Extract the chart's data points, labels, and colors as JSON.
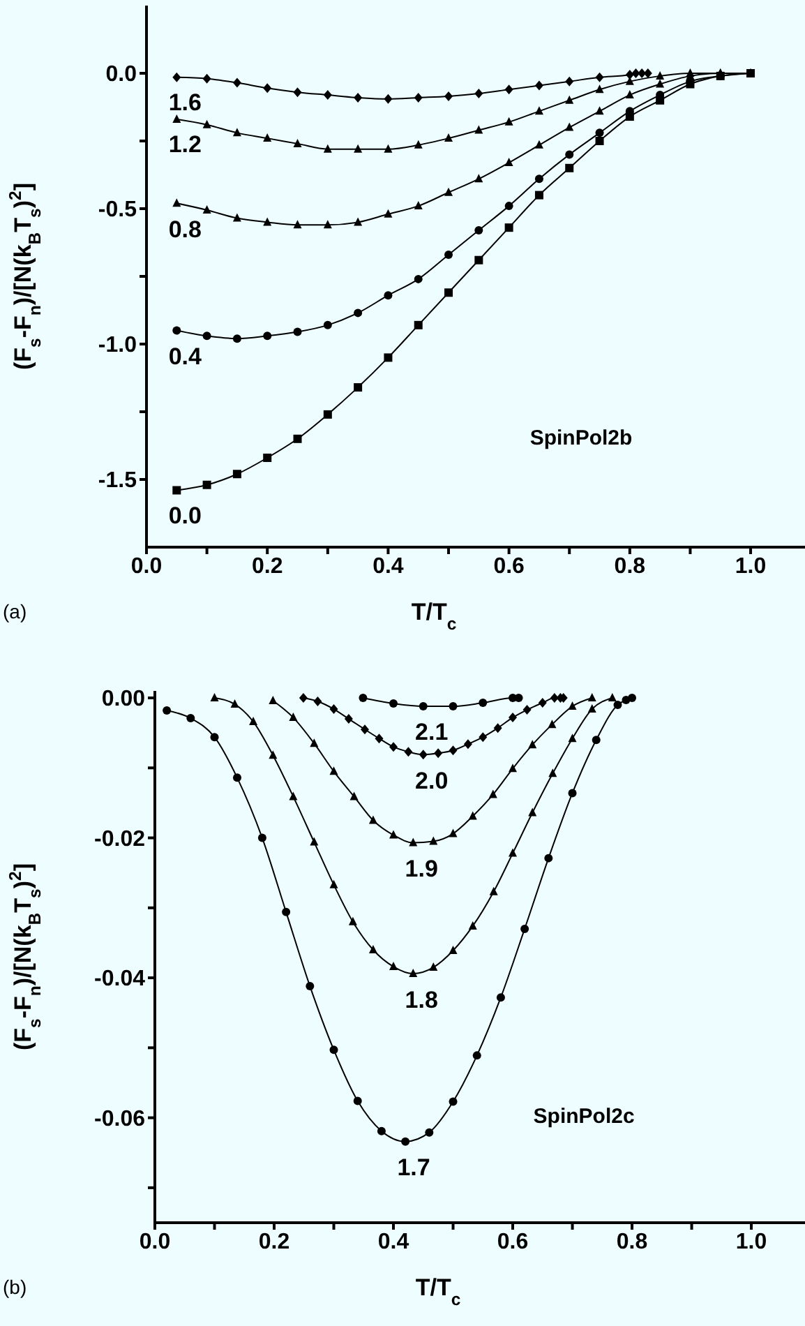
{
  "chart_data": [
    {
      "type": "line",
      "xlabel": "T/T$_{c}$",
      "ylabel": "(F$_{s}$-F$_{n}$)/[N(k$_{B}$T$_{s}$)$^{2}$]",
      "xlim": [
        0,
        1.09
      ],
      "ylim": [
        -1.75,
        0.25
      ],
      "xticks": [
        {
          "value": 0,
          "label": "0.0"
        },
        {
          "value": 0.1,
          "label": null
        },
        {
          "value": 0.2,
          "label": "0.2"
        },
        {
          "value": 0.3,
          "label": null
        },
        {
          "value": 0.4,
          "label": "0.4"
        },
        {
          "value": 0.5,
          "label": null
        },
        {
          "value": 0.6,
          "label": "0.6"
        },
        {
          "value": 0.7,
          "label": null
        },
        {
          "value": 0.8,
          "label": "0.8"
        },
        {
          "value": 0.9,
          "label": null
        },
        {
          "value": 1,
          "label": "1.0"
        }
      ],
      "yticks": [
        {
          "value": -1.5,
          "label": "-1.5"
        },
        {
          "value": -1.25,
          "label": null
        },
        {
          "value": -1,
          "label": "-1.0"
        },
        {
          "value": -0.75,
          "label": null
        },
        {
          "value": -0.5,
          "label": "-0.5"
        },
        {
          "value": -0.25,
          "label": null
        },
        {
          "value": 0,
          "label": "0.0"
        }
      ],
      "series": [
        {
          "name": "0.0",
          "color": "#000000",
          "marker": "square",
          "x": [
            0.05,
            0.1,
            0.15,
            0.2,
            0.25,
            0.3,
            0.35,
            0.4,
            0.45,
            0.5,
            0.55,
            0.6,
            0.65,
            0.7,
            0.75,
            0.8,
            0.85,
            0.9,
            0.95,
            1.0
          ],
          "values": [
            -1.54,
            -1.52,
            -1.48,
            -1.42,
            -1.35,
            -1.26,
            -1.16,
            -1.05,
            -0.93,
            -0.81,
            -0.69,
            -0.57,
            -0.45,
            -0.35,
            -0.25,
            -0.16,
            -0.1,
            -0.04,
            -0.01,
            0
          ]
        },
        {
          "name": "0.4",
          "color": "#000000",
          "marker": "circle",
          "x": [
            0.05,
            0.1,
            0.15,
            0.2,
            0.25,
            0.3,
            0.35,
            0.4,
            0.45,
            0.5,
            0.55,
            0.6,
            0.65,
            0.7,
            0.75,
            0.8,
            0.85,
            0.9,
            0.95,
            1.0
          ],
          "values": [
            -0.95,
            -0.97,
            -0.98,
            -0.97,
            -0.955,
            -0.93,
            -0.885,
            -0.82,
            -0.76,
            -0.67,
            -0.58,
            -0.49,
            -0.39,
            -0.3,
            -0.22,
            -0.14,
            -0.08,
            -0.03,
            -0.01,
            0
          ]
        },
        {
          "name": "0.8",
          "color": "#000000",
          "marker": "triangle",
          "x": [
            0.05,
            0.1,
            0.15,
            0.2,
            0.25,
            0.3,
            0.35,
            0.4,
            0.45,
            0.5,
            0.55,
            0.6,
            0.65,
            0.7,
            0.75,
            0.8,
            0.85,
            0.9,
            0.95,
            1.0
          ],
          "values": [
            -0.48,
            -0.505,
            -0.535,
            -0.55,
            -0.56,
            -0.56,
            -0.55,
            -0.52,
            -0.49,
            -0.44,
            -0.39,
            -0.33,
            -0.265,
            -0.2,
            -0.14,
            -0.08,
            -0.04,
            -0.01,
            0,
            0
          ]
        },
        {
          "name": "1.2",
          "color": "#000000",
          "marker": "triangle",
          "x": [
            0.05,
            0.1,
            0.15,
            0.2,
            0.25,
            0.3,
            0.35,
            0.4,
            0.45,
            0.5,
            0.55,
            0.6,
            0.65,
            0.7,
            0.75,
            0.8,
            0.85,
            0.9,
            0.95,
            1.0
          ],
          "values": [
            -0.17,
            -0.19,
            -0.22,
            -0.24,
            -0.26,
            -0.28,
            -0.28,
            -0.28,
            -0.265,
            -0.24,
            -0.21,
            -0.18,
            -0.14,
            -0.1,
            -0.06,
            -0.03,
            -0.01,
            0,
            0,
            0
          ]
        },
        {
          "name": "1.6",
          "color": "#000000",
          "marker": "diamond",
          "x": [
            0.05,
            0.1,
            0.15,
            0.2,
            0.25,
            0.3,
            0.35,
            0.4,
            0.45,
            0.5,
            0.55,
            0.6,
            0.65,
            0.7,
            0.75,
            0.8,
            0.81,
            0.82,
            0.83
          ],
          "values": [
            -0.015,
            -0.02,
            -0.035,
            -0.055,
            -0.07,
            -0.08,
            -0.09,
            -0.095,
            -0.09,
            -0.085,
            -0.075,
            -0.06,
            -0.045,
            -0.03,
            -0.015,
            -0.005,
            0,
            0,
            0
          ]
        }
      ],
      "annotations": [
        "SpinPol2b",
        "(a)"
      ]
    },
    {
      "type": "line",
      "xlabel": "T/T$_{c}$",
      "ylabel": "(F$_{s}$-F$_{n}$)/[N(k$_{B}$T$_{s}$)$^{2}$]",
      "xlim": [
        0,
        1.09
      ],
      "ylim": [
        -0.075,
        0.001
      ],
      "xticks": [
        {
          "value": 0,
          "label": "0.0"
        },
        {
          "value": 0.1,
          "label": null
        },
        {
          "value": 0.2,
          "label": "0.2"
        },
        {
          "value": 0.3,
          "label": null
        },
        {
          "value": 0.4,
          "label": "0.4"
        },
        {
          "value": 0.5,
          "label": null
        },
        {
          "value": 0.6,
          "label": "0.6"
        },
        {
          "value": 0.7,
          "label": null
        },
        {
          "value": 0.8,
          "label": "0.8"
        },
        {
          "value": 0.9,
          "label": null
        },
        {
          "value": 1,
          "label": "1.0"
        }
      ],
      "yticks": [
        {
          "value": -0.07,
          "label": null
        },
        {
          "value": -0.06,
          "label": "-0.06"
        },
        {
          "value": -0.05,
          "label": null
        },
        {
          "value": -0.04,
          "label": "-0.04"
        },
        {
          "value": -0.03,
          "label": null
        },
        {
          "value": -0.02,
          "label": "-0.02"
        },
        {
          "value": -0.01,
          "label": null
        },
        {
          "value": 0,
          "label": "0.00"
        }
      ],
      "series": [
        {
          "name": "1.7",
          "color": "#000000",
          "marker": "circle",
          "x": [
            0.02,
            0.06,
            0.1,
            0.138,
            0.18,
            0.22,
            0.26,
            0.3,
            0.34,
            0.38,
            0.42,
            0.46,
            0.5,
            0.54,
            0.58,
            0.62,
            0.66,
            0.7,
            0.74,
            0.776,
            0.79,
            0.8
          ],
          "values": [
            -0.0018,
            -0.0029,
            -0.0056,
            -0.0114,
            -0.02,
            -0.0306,
            -0.0412,
            -0.0503,
            -0.0576,
            -0.0619,
            -0.0634,
            -0.0621,
            -0.0577,
            -0.0511,
            -0.0428,
            -0.033,
            -0.0229,
            -0.0136,
            -0.006,
            -0.001,
            -0.0003,
            0
          ]
        },
        {
          "name": "1.8",
          "color": "#000000",
          "marker": "triangle",
          "x": [
            0.1,
            0.134,
            0.165,
            0.198,
            0.232,
            0.267,
            0.3,
            0.332,
            0.366,
            0.4,
            0.433,
            0.467,
            0.5,
            0.533,
            0.568,
            0.6,
            0.633,
            0.667,
            0.7,
            0.733,
            0.767
          ],
          "values": [
            0,
            -0.0009,
            -0.0034,
            -0.0082,
            -0.0141,
            -0.0206,
            -0.0267,
            -0.032,
            -0.036,
            -0.0384,
            -0.0394,
            -0.0385,
            -0.0361,
            -0.0326,
            -0.0277,
            -0.0222,
            -0.0164,
            -0.0108,
            -0.0058,
            -0.0016,
            0
          ]
        },
        {
          "name": "1.9",
          "color": "#000000",
          "marker": "triangle",
          "x": [
            0.198,
            0.232,
            0.267,
            0.3,
            0.334,
            0.366,
            0.4,
            0.433,
            0.467,
            0.5,
            0.533,
            0.567,
            0.6,
            0.633,
            0.666,
            0.7,
            0.733
          ],
          "values": [
            -0.0004,
            -0.0028,
            -0.0065,
            -0.0105,
            -0.0141,
            -0.0175,
            -0.0196,
            -0.0207,
            -0.0205,
            -0.0194,
            -0.0169,
            -0.0138,
            -0.0101,
            -0.0067,
            -0.0038,
            -0.0012,
            0
          ]
        },
        {
          "name": "2.0",
          "color": "#000000",
          "marker": "diamond",
          "x": [
            0.249,
            0.273,
            0.3,
            0.325,
            0.352,
            0.376,
            0.4,
            0.425,
            0.45,
            0.475,
            0.5,
            0.525,
            0.55,
            0.575,
            0.6,
            0.624,
            0.65,
            0.67,
            0.68,
            0.685
          ],
          "values": [
            0,
            -0.0005,
            -0.0016,
            -0.003,
            -0.0045,
            -0.0058,
            -0.007,
            -0.0077,
            -0.0081,
            -0.0079,
            -0.0075,
            -0.0066,
            -0.0056,
            -0.0043,
            -0.0028,
            -0.0017,
            -0.0007,
            0,
            0,
            0
          ]
        },
        {
          "name": "2.1",
          "color": "#000000",
          "marker": "circle",
          "x": [
            0.349,
            0.4,
            0.45,
            0.5,
            0.55,
            0.6,
            0.61
          ],
          "values": [
            0,
            -0.0008,
            -0.0012,
            -0.0012,
            -0.0007,
            0,
            0
          ]
        }
      ],
      "annotations": [
        "SpinPol2c",
        "(b)"
      ]
    }
  ]
}
